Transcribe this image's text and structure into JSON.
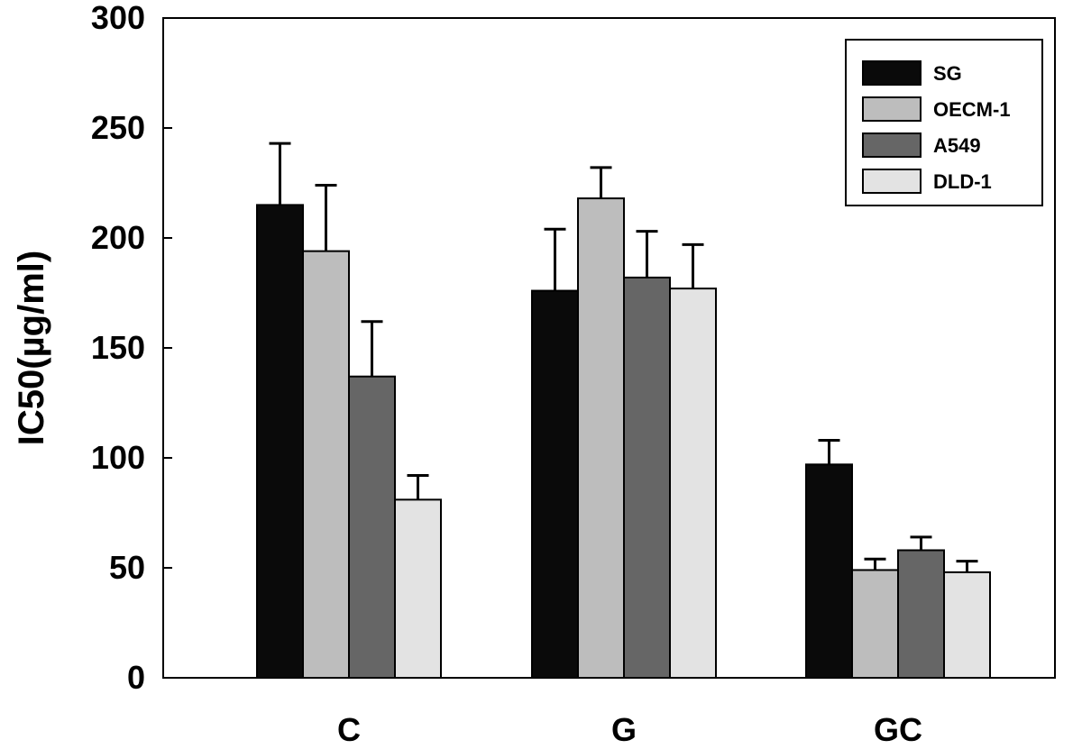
{
  "chart_data": {
    "type": "bar",
    "title": "",
    "xlabel": "",
    "ylabel": "IC50(µg/ml)",
    "ylim": [
      0,
      300
    ],
    "yticks": [
      0,
      50,
      100,
      150,
      200,
      250,
      300
    ],
    "grid": false,
    "legend_position": "top-right",
    "categories": [
      "C",
      "G",
      "GC"
    ],
    "series": [
      {
        "name": "SG",
        "color": "#0a0a0a",
        "values": [
          215,
          176,
          97
        ],
        "errors": [
          28,
          28,
          11
        ]
      },
      {
        "name": "OECM-1",
        "color": "#bdbdbd",
        "values": [
          194,
          218,
          49
        ],
        "errors": [
          30,
          14,
          5
        ]
      },
      {
        "name": "A549",
        "color": "#666666",
        "values": [
          137,
          182,
          58
        ],
        "errors": [
          25,
          21,
          6
        ]
      },
      {
        "name": "DLD-1",
        "color": "#e3e3e3",
        "values": [
          81,
          177,
          48
        ],
        "errors": [
          11,
          20,
          5
        ]
      }
    ]
  }
}
